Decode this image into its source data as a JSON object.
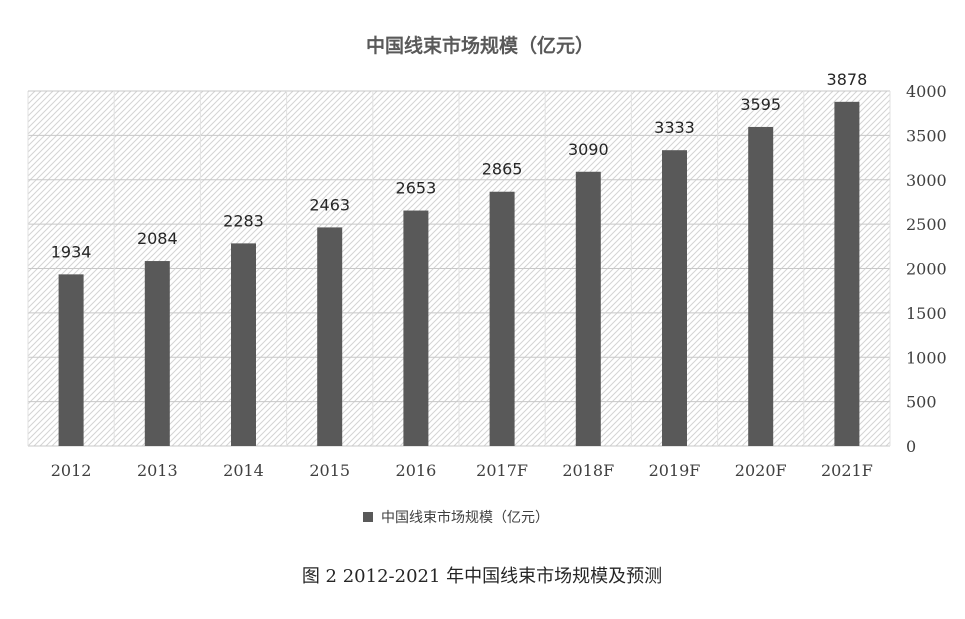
{
  "chart_data": {
    "type": "bar",
    "title": "中国线束市场规模（亿元）",
    "categories": [
      "2012",
      "2013",
      "2014",
      "2015",
      "2016",
      "2017F",
      "2018F",
      "2019F",
      "2020F",
      "2021F"
    ],
    "series": [
      {
        "name": "中国线束市场规模（亿元）",
        "values": [
          1934,
          2084,
          2283,
          2463,
          2653,
          2865,
          3090,
          3333,
          3595,
          3878
        ]
      }
    ],
    "ylim": [
      0,
      4000
    ],
    "yticks": [
      0,
      500,
      1000,
      1500,
      2000,
      2500,
      3000,
      3500,
      4000
    ],
    "y_axis_side": "right",
    "grid": true,
    "legend_position": "bottom",
    "bar_color": "#595959"
  },
  "caption": "图 2  2012-2021 年中国线束市场规模及预测"
}
